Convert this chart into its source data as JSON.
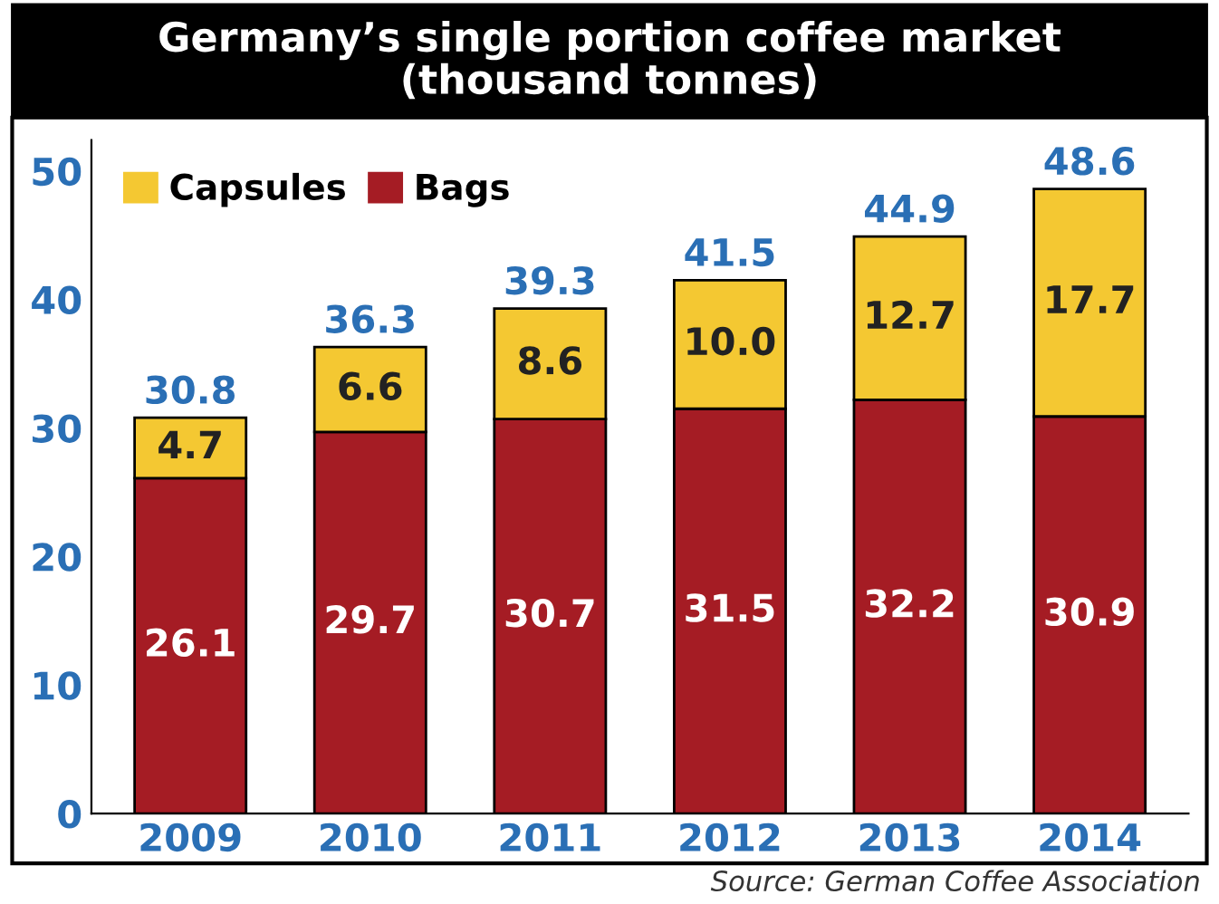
{
  "chart_data": {
    "type": "bar",
    "stacked": true,
    "title": "Germany’s single portion coffee market",
    "subtitle": "(thousand tonnes)",
    "categories": [
      "2009",
      "2010",
      "2011",
      "2012",
      "2013",
      "2014"
    ],
    "series": [
      {
        "name": "Bags",
        "color": "#a51c24",
        "values": [
          26.1,
          29.7,
          30.7,
          31.5,
          32.2,
          30.9
        ],
        "value_labels": [
          "26.1",
          "29.7",
          "30.7",
          "31.5",
          "32.2",
          "30.9"
        ]
      },
      {
        "name": "Capsules",
        "color": "#f4c832",
        "values": [
          4.7,
          6.6,
          8.6,
          10.0,
          12.7,
          17.7
        ],
        "value_labels": [
          "4.7",
          "6.6",
          "8.6",
          "10.0",
          "12.7",
          "17.7"
        ]
      }
    ],
    "totals": [
      "30.8",
      "36.3",
      "39.3",
      "41.5",
      "44.9",
      "48.6"
    ],
    "ylim": [
      0,
      52.4
    ],
    "yticks": [
      0,
      10,
      20,
      30,
      40,
      50
    ],
    "grid": false,
    "legend": "top left",
    "annotations": [
      "Source: German Coffee Association"
    ]
  }
}
